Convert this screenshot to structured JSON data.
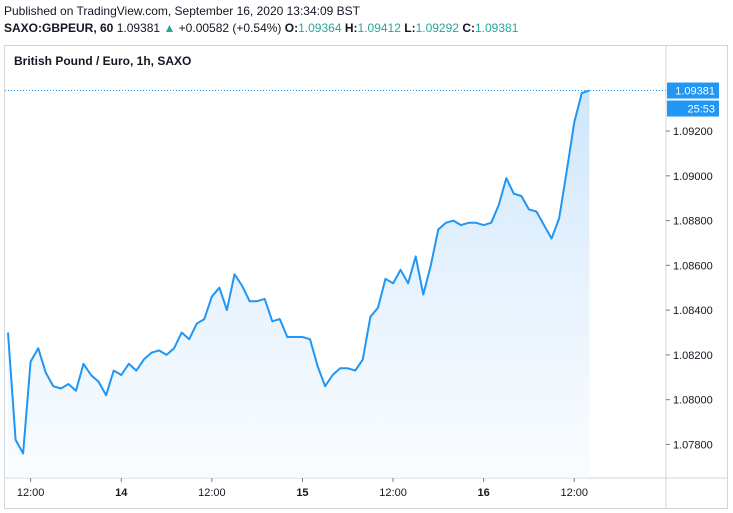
{
  "header": {
    "published": "Published on TradingView.com, September 16, 2020 13:34:09 BST",
    "symbol": "SAXO:GBPEUR, 60",
    "last": "1.09381",
    "arrow": "▲",
    "change": "+0.00582 (+0.54%)",
    "o_label": "O:",
    "o_value": "1.09364",
    "h_label": "H:",
    "h_value": "1.09412",
    "l_label": "L:",
    "l_value": "1.09292",
    "c_label": "C:",
    "c_value": "1.09381"
  },
  "chart_title": "British Pound / Euro, 1h, SAXO",
  "colors": {
    "line": "#2196f3",
    "fill_top": "#c9e3fb",
    "fill_bottom": "#f5faff",
    "up": "#26a69a",
    "badge": "#2196f3"
  },
  "chart_data": {
    "type": "area",
    "title": "British Pound / Euro, 1h, SAXO",
    "xlabel": "",
    "ylabel": "",
    "y_range": [
      1.0765,
      1.0958
    ],
    "y_ticks": [
      "1.07800",
      "1.08000",
      "1.08200",
      "1.08400",
      "1.08600",
      "1.08800",
      "1.09000",
      "1.09200"
    ],
    "x_ticks": [
      {
        "label": "12:00",
        "bold": false,
        "index": 3
      },
      {
        "label": "14",
        "bold": true,
        "index": 15
      },
      {
        "label": "12:00",
        "bold": false,
        "index": 27
      },
      {
        "label": "15",
        "bold": true,
        "index": 39
      },
      {
        "label": "12:00",
        "bold": false,
        "index": 51
      },
      {
        "label": "16",
        "bold": true,
        "index": 63
      },
      {
        "label": "12:00",
        "bold": false,
        "index": 75
      }
    ],
    "values": [
      1.083,
      1.0782,
      1.0776,
      1.0817,
      1.0823,
      1.0812,
      1.0806,
      1.0805,
      1.0807,
      1.0804,
      1.0816,
      1.0811,
      1.0808,
      1.0802,
      1.0813,
      1.0811,
      1.0816,
      1.0813,
      1.0818,
      1.0821,
      1.0822,
      1.082,
      1.0823,
      1.083,
      1.0827,
      1.0834,
      1.0836,
      1.0846,
      1.085,
      1.084,
      1.0856,
      1.0851,
      1.0844,
      1.0844,
      1.0845,
      1.0835,
      1.0836,
      1.0828,
      1.0828,
      1.0828,
      1.0827,
      1.0815,
      1.0806,
      1.0811,
      1.0814,
      1.0814,
      1.0813,
      1.0818,
      1.0837,
      1.0841,
      1.0854,
      1.0852,
      1.0858,
      1.0852,
      1.0864,
      1.0847,
      1.086,
      1.0876,
      1.0879,
      1.088,
      1.0878,
      1.0879,
      1.0879,
      1.0878,
      1.0879,
      1.0887,
      1.0899,
      1.0892,
      1.0891,
      1.0885,
      1.0884,
      1.0878,
      1.0872,
      1.0881,
      1.0902,
      1.0924,
      1.0937,
      1.09381
    ],
    "last_value_label": "1.09381",
    "countdown_label": "25:53"
  }
}
